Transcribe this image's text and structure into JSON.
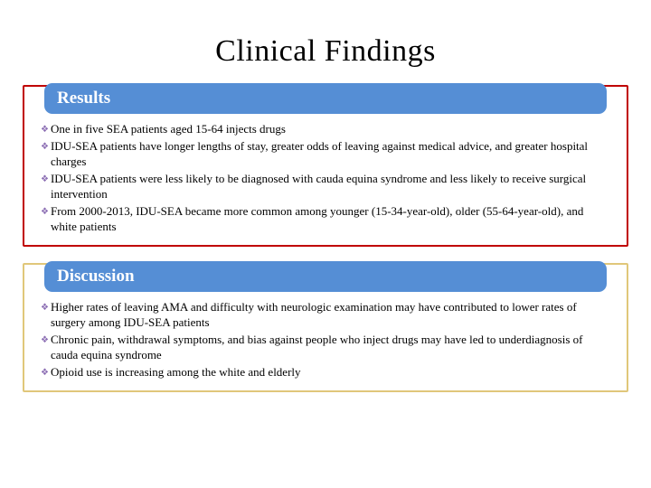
{
  "title": "Clinical Findings",
  "colors": {
    "header_bg": "#558ed5",
    "header_text": "#ffffff",
    "bullet_icon": "#8b6db3",
    "results_border": "#c00000",
    "discussion_border": "#e0c77a",
    "background": "#ffffff",
    "body_text": "#000000"
  },
  "typography": {
    "title_fontsize": 34,
    "header_fontsize": 19,
    "body_fontsize": 13,
    "font_family": "Times New Roman"
  },
  "sections": {
    "results": {
      "heading": "Results",
      "items": [
        "One in five SEA patients aged 15-64 injects drugs",
        "IDU-SEA patients have longer lengths of stay, greater odds of leaving against medical advice, and greater hospital charges",
        "IDU-SEA patients were less likely to be diagnosed with cauda equina syndrome and less likely to receive surgical intervention",
        "From 2000-2013, IDU-SEA became more common among younger (15-34-year-old), older (55-64-year-old), and white patients"
      ]
    },
    "discussion": {
      "heading": "Discussion",
      "items": [
        "Higher rates of leaving AMA and difficulty with neurologic examination may have contributed to lower rates of surgery among IDU-SEA patients",
        "Chronic pain, withdrawal symptoms, and bias against people who inject drugs may have led to underdiagnosis of cauda equina syndrome",
        "Opioid use is increasing among the white and elderly"
      ]
    }
  }
}
